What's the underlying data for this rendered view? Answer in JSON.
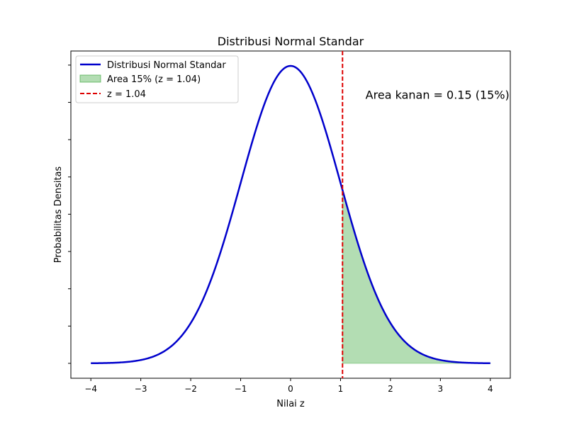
{
  "chart_data": {
    "type": "line",
    "title": "Distribusi Normal Standar",
    "xlabel": "Nilai z",
    "ylabel": "Probabilitas Densitas",
    "xlim": [
      -4.4,
      4.4
    ],
    "ylim": [
      -0.02,
      0.4189
    ],
    "xticks": [
      -4,
      -3,
      -2,
      -1,
      0,
      1,
      2,
      3,
      4
    ],
    "xtick_labels": [
      "−4",
      "−3",
      "−2",
      "−1",
      "0",
      "1",
      "2",
      "3",
      "4"
    ],
    "yticks": [
      0,
      0.05,
      0.1,
      0.15,
      0.2,
      0.25,
      0.3,
      0.35,
      0.4
    ],
    "y_tick_labels_shown": false,
    "grid": false,
    "legend_position": "upper-left",
    "curve": {
      "name": "Distribusi Normal Standar",
      "mean": 0,
      "sd": 1,
      "x_range": [
        -4,
        4
      ],
      "color": "#0000cc"
    },
    "shaded_area": {
      "name": "Area 15% (z = 1.04)",
      "from": 1.04,
      "to": 4,
      "color": "#2ca02c",
      "opacity": 0.36
    },
    "vline": {
      "name": "z = 1.04",
      "x": 1.04,
      "color": "#dd0000",
      "style": "dashed"
    },
    "annotation": {
      "text": "Area kanan = 0.15 (15%)",
      "x": 1.5,
      "y": 0.355
    }
  }
}
